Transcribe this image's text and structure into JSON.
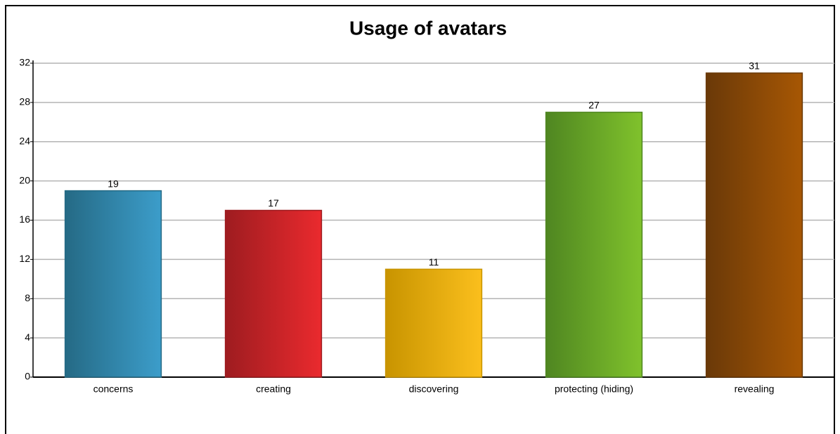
{
  "chart_data": {
    "type": "bar",
    "title": "Usage of avatars",
    "categories": [
      "concerns",
      "creating",
      "discovering",
      "protecting (hiding)",
      "revealing"
    ],
    "values": [
      19,
      17,
      11,
      27,
      31
    ],
    "colors": [
      [
        "#256a85",
        "#3c9dca"
      ],
      [
        "#9e1c20",
        "#ea2a2e"
      ],
      [
        "#c89400",
        "#fbbf1d"
      ],
      [
        "#4f8621",
        "#80c22c"
      ],
      [
        "#6a3908",
        "#a75704"
      ]
    ],
    "ylim": [
      0,
      32
    ],
    "yticks": [
      0,
      4,
      8,
      12,
      16,
      20,
      24,
      28,
      32
    ],
    "grid": true
  }
}
